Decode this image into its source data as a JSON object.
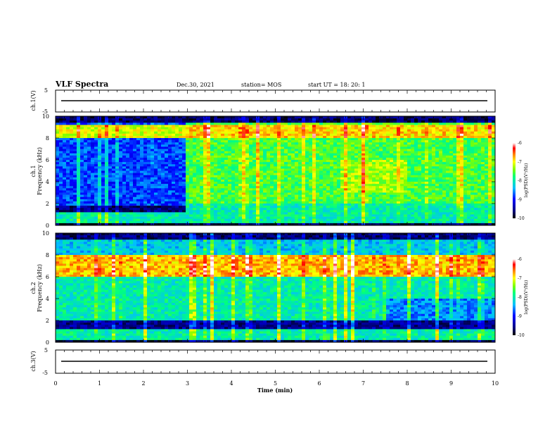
{
  "header": {
    "title": "VLF Spectra",
    "date": "Dec.30, 2021",
    "station": "station= MOS",
    "start": "start  UT =   18: 20: 1"
  },
  "chart_data": [
    {
      "type": "line",
      "name": "ch1-waveform",
      "ylabel": "ch.1(V)",
      "ylim": [
        -5,
        5
      ],
      "yticks": [
        "5",
        "-5"
      ],
      "xlim": [
        0,
        10
      ],
      "trace_level": 0
    },
    {
      "type": "heatmap",
      "name": "ch1-spectrogram",
      "ylabel": "ch.1\nFrequency (kHz)",
      "ylim": [
        0,
        10
      ],
      "yticks": [
        "0",
        "2",
        "4",
        "6",
        "8",
        "10"
      ],
      "xlim": [
        0,
        10
      ],
      "colorbar": {
        "label": "log(PSD)(V²/Hz)",
        "range": [
          -10,
          -6
        ],
        "ticks": [
          "-6",
          "-7",
          "-8",
          "-9",
          "-10"
        ]
      }
    },
    {
      "type": "heatmap",
      "name": "ch2-spectrogram",
      "ylabel": "ch.2\nFrequency (kHz)",
      "ylim": [
        0,
        10
      ],
      "yticks": [
        "0",
        "2",
        "4",
        "6",
        "8",
        "10"
      ],
      "xlim": [
        0,
        10
      ],
      "colorbar": {
        "label": "log(PSD)(V²/Hz)",
        "range": [
          -10,
          -6
        ],
        "ticks": [
          "-6",
          "-7",
          "-8",
          "-9",
          "-10"
        ]
      }
    },
    {
      "type": "line",
      "name": "ch3-waveform",
      "ylabel": "ch.3(V)",
      "ylim": [
        -5,
        5
      ],
      "yticks": [
        "5",
        "-5"
      ],
      "xlim": [
        0,
        10
      ],
      "xlabel": "Time (min)",
      "xticks": [
        "0",
        "1",
        "2",
        "3",
        "4",
        "5",
        "6",
        "7",
        "8",
        "9",
        "10"
      ],
      "trace_level": 0
    }
  ],
  "labels": {
    "ch1_v": "ch.1(V)",
    "ch1_name": "ch.1",
    "ch2_name": "ch.2",
    "freq": "Frequency (kHz)",
    "ch3_v": "ch.3(V)",
    "xlabel": "Time (min)",
    "cb_label": "log(PSD)(V²/Hz)"
  },
  "colors": {
    "bg": "#ffffff",
    "colormap": [
      "#000000",
      "#00007f",
      "#0000ff",
      "#00bfff",
      "#00ff7f",
      "#7fff00",
      "#ffff00",
      "#ff7f00",
      "#ff0000",
      "#ffffff"
    ]
  }
}
